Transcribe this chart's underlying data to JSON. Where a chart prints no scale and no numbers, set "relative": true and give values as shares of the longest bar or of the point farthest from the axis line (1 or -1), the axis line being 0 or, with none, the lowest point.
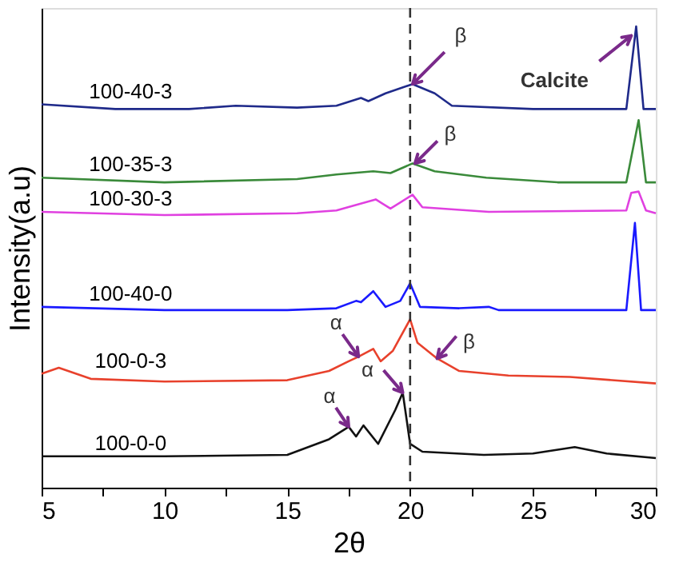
{
  "chart_data": {
    "type": "line",
    "relative": true,
    "xlabel": "2θ",
    "ylabel": "Intensity(a.u)",
    "xlim": [
      5,
      30
    ],
    "xticks": [
      5,
      {
        "value": 7.5,
        "label": null
      },
      10,
      {
        "value": 12.5,
        "label": null
      },
      15,
      {
        "value": 17.5,
        "label": null
      },
      20,
      {
        "value": 22.5,
        "label": null
      },
      25,
      {
        "value": 27.5,
        "label": null
      },
      30
    ],
    "line_style": "solid",
    "series": [
      {
        "name": "100-0-0",
        "color": "#111111",
        "x": [
          5,
          10,
          15,
          16.7,
          17.5,
          17.8,
          18.1,
          18.7,
          19.4,
          19.7,
          20.0,
          20.5,
          23,
          25,
          26.7,
          28,
          30
        ],
        "values": [
          0.068,
          0.068,
          0.071,
          0.105,
          0.132,
          0.111,
          0.135,
          0.095,
          0.169,
          0.206,
          0.095,
          0.078,
          0.071,
          0.074,
          0.088,
          0.074,
          0.064
        ]
      },
      {
        "name": "100-0-3",
        "color": "#e8412c",
        "x": [
          5,
          5.7,
          7,
          10,
          15,
          16.7,
          17.5,
          17.9,
          18.5,
          18.8,
          19.3,
          20.0,
          20.3,
          21.1,
          22,
          24,
          26.5,
          30
        ],
        "values": [
          0.247,
          0.26,
          0.236,
          0.23,
          0.233,
          0.253,
          0.274,
          0.284,
          0.301,
          0.274,
          0.297,
          0.365,
          0.314,
          0.28,
          0.253,
          0.243,
          0.24,
          0.226
        ]
      },
      {
        "name": "100-40-0",
        "color": "#1a1aff",
        "x": [
          5,
          10,
          15,
          17,
          17.8,
          18.0,
          18.5,
          19,
          19.6,
          20.0,
          20.4,
          22,
          23.2,
          23.6,
          28.8,
          29.15,
          29.4,
          30
        ],
        "values": [
          0.392,
          0.385,
          0.385,
          0.389,
          0.405,
          0.402,
          0.426,
          0.392,
          0.405,
          0.443,
          0.392,
          0.389,
          0.392,
          0.385,
          0.385,
          0.574,
          0.385,
          0.385
        ]
      },
      {
        "name": "100-30-3",
        "color": "#e040e0",
        "x": [
          5,
          10,
          15.4,
          17,
          18.6,
          19.2,
          20.1,
          20.5,
          23.2,
          28.8,
          29.0,
          29.3,
          29.6,
          30
        ],
        "values": [
          0.598,
          0.591,
          0.595,
          0.601,
          0.625,
          0.605,
          0.635,
          0.608,
          0.598,
          0.601,
          0.639,
          0.642,
          0.601,
          0.595
        ]
      },
      {
        "name": "100-35-3",
        "color": "#3a8a3a",
        "x": [
          5,
          10,
          15.4,
          17,
          18.5,
          19.2,
          20.1,
          21,
          23.1,
          26,
          28.8,
          29.3,
          29.6,
          30
        ],
        "values": [
          0.672,
          0.662,
          0.669,
          0.679,
          0.686,
          0.682,
          0.703,
          0.686,
          0.672,
          0.662,
          0.662,
          0.797,
          0.662,
          0.662
        ]
      },
      {
        "name": "100-40-3",
        "color": "#1f2a8a",
        "x": [
          5,
          8,
          11,
          12.9,
          15.4,
          17,
          18.0,
          18.3,
          19.0,
          20.1,
          21.0,
          21.7,
          25,
          28.8,
          29.2,
          29.5,
          30
        ],
        "values": [
          0.831,
          0.821,
          0.821,
          0.828,
          0.824,
          0.828,
          0.845,
          0.838,
          0.855,
          0.875,
          0.855,
          0.828,
          0.821,
          0.821,
          1.0,
          0.821,
          0.821
        ]
      }
    ],
    "ref_lines": [
      {
        "axis": "x",
        "value": 20,
        "color": "#333333",
        "line_style": "dashed"
      }
    ],
    "annotations": [
      {
        "text": "β",
        "x": 20.1,
        "y": 0.875
      },
      {
        "text": "Calcite",
        "x": 29.0,
        "y": 0.98
      },
      {
        "text": "β",
        "x": 20.2,
        "y": 0.703
      },
      {
        "text": "α",
        "x": 17.9,
        "y": 0.284
      },
      {
        "text": "β",
        "x": 21.1,
        "y": 0.28
      },
      {
        "text": "α",
        "x": 19.7,
        "y": 0.206
      },
      {
        "text": "α",
        "x": 17.5,
        "y": 0.132
      }
    ]
  }
}
